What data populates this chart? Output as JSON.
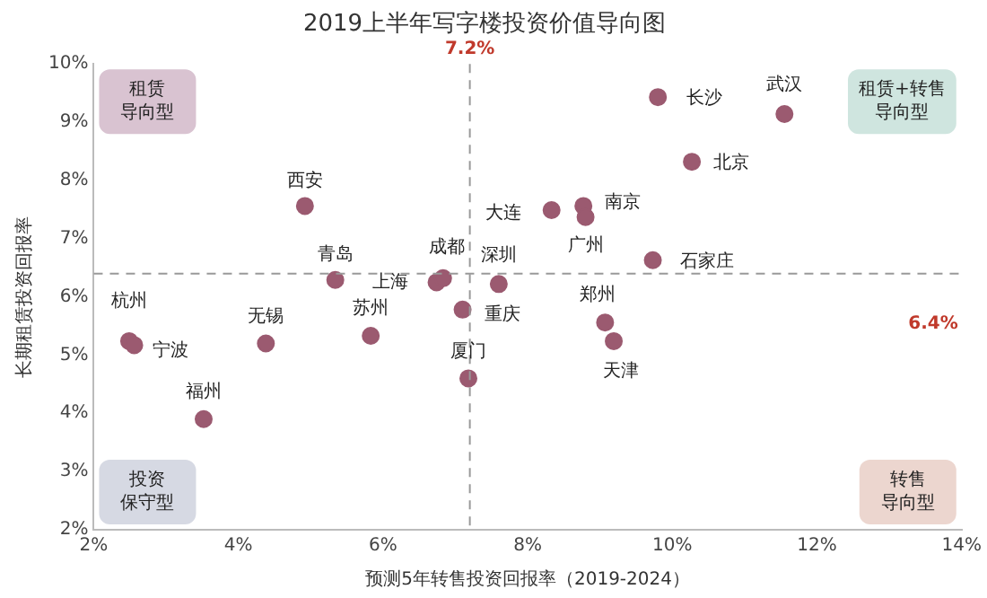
{
  "chart_data": {
    "type": "scatter",
    "title": "2019上半年写字楼投资价值导向图",
    "xlabel": "预测5年转售投资回报率（2019-2024）",
    "ylabel": "长期租赁投资回报率",
    "series": [
      {
        "color": "#9b5a70",
        "x": [
          4.92,
          5.34,
          6.74,
          6.83,
          7.6,
          2.49,
          2.56,
          4.38,
          5.83,
          3.52,
          7.1,
          7.18,
          9.07,
          9.19,
          9.8,
          11.55,
          10.27,
          8.33,
          8.77,
          8.8,
          9.73
        ],
        "values": [
          7.56,
          6.29,
          6.25,
          6.32,
          6.22,
          5.24,
          5.17,
          5.2,
          5.33,
          3.9,
          5.78,
          4.6,
          5.56,
          5.24,
          9.43,
          9.14,
          8.32,
          7.49,
          7.56,
          7.37,
          6.63
        ]
      }
    ],
    "marker": "circle",
    "legend": false,
    "grid": false,
    "xlim": [
      2,
      14
    ],
    "xticks": [
      {
        "value": 2,
        "label": "2%"
      },
      {
        "value": 4,
        "label": "4%"
      },
      {
        "value": 6,
        "label": "6%"
      },
      {
        "value": 8,
        "label": "8%"
      },
      {
        "value": 10,
        "label": "10%"
      },
      {
        "value": 12,
        "label": "12%"
      },
      {
        "value": 14,
        "label": "14%"
      }
    ],
    "ylim": [
      2,
      10
    ],
    "yticks": [
      {
        "value": 2,
        "label": "2%"
      },
      {
        "value": 3,
        "label": "3%"
      },
      {
        "value": 4,
        "label": "4%"
      },
      {
        "value": 5,
        "label": "5%"
      },
      {
        "value": 6,
        "label": "6%"
      },
      {
        "value": 7,
        "label": "7%"
      },
      {
        "value": 8,
        "label": "8%"
      },
      {
        "value": 9,
        "label": "9%"
      },
      {
        "value": 10,
        "label": "10%"
      }
    ],
    "ref_lines": [
      {
        "axis": "x",
        "value": 7.2,
        "label": "7.2%",
        "color": "#999999",
        "line_style": "dashed"
      },
      {
        "axis": "y",
        "value": 6.4,
        "label": "6.4%",
        "color": "#999999",
        "line_style": "dashed"
      }
    ],
    "annotations": [
      {
        "text": "西安",
        "x": 4.92,
        "y": 7.56
      },
      {
        "text": "青岛",
        "x": 5.34,
        "y": 6.29
      },
      {
        "text": "上海",
        "x": 6.74,
        "y": 6.25
      },
      {
        "text": "成都",
        "x": 6.83,
        "y": 6.32
      },
      {
        "text": "深圳",
        "x": 7.6,
        "y": 6.22
      },
      {
        "text": "杭州",
        "x": 2.49,
        "y": 5.24
      },
      {
        "text": "宁波",
        "x": 2.56,
        "y": 5.17
      },
      {
        "text": "无锡",
        "x": 4.38,
        "y": 5.2
      },
      {
        "text": "苏州",
        "x": 5.83,
        "y": 5.33
      },
      {
        "text": "福州",
        "x": 3.52,
        "y": 3.9
      },
      {
        "text": "重庆",
        "x": 7.1,
        "y": 5.78
      },
      {
        "text": "厦门",
        "x": 7.18,
        "y": 4.6
      },
      {
        "text": "郑州",
        "x": 9.07,
        "y": 5.56
      },
      {
        "text": "天津",
        "x": 9.19,
        "y": 5.24
      },
      {
        "text": "长沙",
        "x": 9.8,
        "y": 9.43
      },
      {
        "text": "武汉",
        "x": 11.55,
        "y": 9.14
      },
      {
        "text": "北京",
        "x": 10.27,
        "y": 8.32
      },
      {
        "text": "大连",
        "x": 8.33,
        "y": 7.49
      },
      {
        "text": "南京",
        "x": 8.77,
        "y": 7.56
      },
      {
        "text": "广州",
        "x": 8.8,
        "y": 7.37
      },
      {
        "text": "石家庄",
        "x": 9.73,
        "y": 6.63
      },
      "租赁导向型",
      "租赁+转售导向型",
      "投资保守型",
      "转售导向型"
    ]
  }
}
